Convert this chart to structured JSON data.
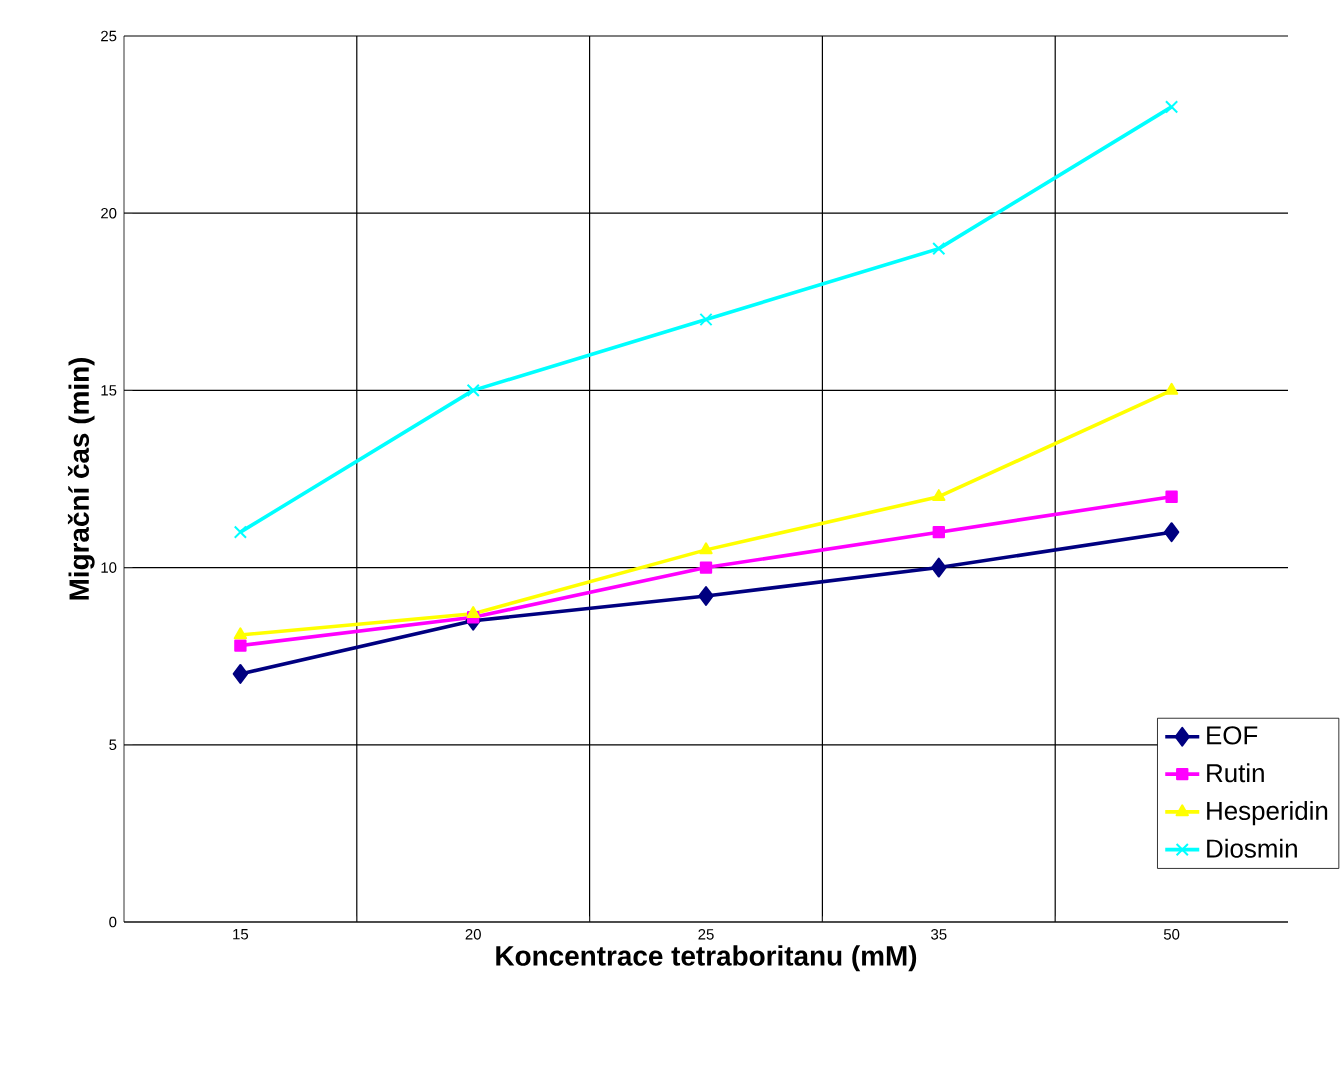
{
  "chart_data": {
    "type": "line",
    "xlabel": "Koncentrace tetraboritanu (mM)",
    "ylabel": "Migrační čas (min)",
    "categories": [
      "15",
      "20",
      "25",
      "35",
      "50"
    ],
    "series": [
      {
        "name": "EOF",
        "color": "#000080",
        "marker": "diamond",
        "values": [
          7,
          8.5,
          9.2,
          10,
          11
        ]
      },
      {
        "name": "Rutin",
        "color": "#ff00ff",
        "marker": "square",
        "values": [
          7.8,
          8.6,
          10,
          11,
          12
        ]
      },
      {
        "name": "Hesperidin",
        "color": "#ffff00",
        "marker": "triangle",
        "values": [
          8.1,
          8.7,
          10.5,
          12,
          15
        ]
      },
      {
        "name": "Diosmin",
        "color": "#00ffff",
        "marker": "cross",
        "values": [
          11,
          15,
          17,
          19,
          23
        ]
      }
    ],
    "ylim": [
      0,
      25
    ],
    "yticks": [
      0,
      5,
      10,
      15,
      20,
      25
    ],
    "grid": true,
    "legend": "bottom right",
    "line_style": "solid"
  }
}
